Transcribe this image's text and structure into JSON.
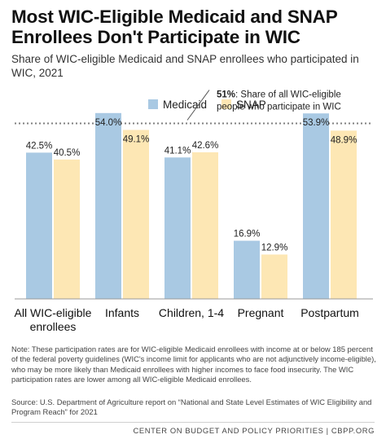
{
  "title": "Most WIC-Eligible Medicaid and SNAP Enrollees Don't Participate in WIC",
  "subtitle": "Share of WIC-eligible Medicaid and SNAP enrollees who participated in WIC, 2021",
  "note": "Note: These participation rates are for WIC-eligible Medicaid enrollees with income at or below 185 percent of the federal poverty guidelines (WIC's income limit for applicants who are not adjunctively income-eligible), who may be more likely than Medicaid enrollees with higher incomes to face food insecurity. The WIC participation rates are lower among all WIC-eligible Medicaid enrollees.",
  "source": "Source: U.S. Department of Agriculture report on “National and State Level Estimates of WIC Eligibility and Program Reach” for 2021",
  "footer": "CENTER ON BUDGET AND POLICY PRIORITIES | CBPP.ORG",
  "colors": {
    "medicaid": "#a9c9e3",
    "snap": "#fde7b4",
    "reference_line": "#7f7f7f"
  },
  "chart_data": {
    "type": "bar",
    "categories": [
      "All WIC-eligible enrollees",
      "Infants",
      "Children, 1-4",
      "Pregnant",
      "Postpartum"
    ],
    "series": [
      {
        "name": "Medicaid",
        "values": [
          42.5,
          54.0,
          41.1,
          16.9,
          53.9
        ],
        "labels": [
          "42.5%",
          "54.0%",
          "41.1%",
          "16.9%",
          "53.9%"
        ]
      },
      {
        "name": "SNAP",
        "values": [
          40.5,
          49.1,
          42.6,
          12.9,
          48.9
        ],
        "labels": [
          "40.5%",
          "49.1%",
          "42.6%",
          "12.9%",
          "48.9%"
        ]
      }
    ],
    "ylim": [
      0,
      62
    ],
    "legend_position": "top-center",
    "grid": false,
    "reference_line": {
      "value": 51,
      "label_bold": "51%",
      "label_rest": ": Share of all WIC-eligible",
      "label_line2": "people who participate in WIC"
    }
  }
}
